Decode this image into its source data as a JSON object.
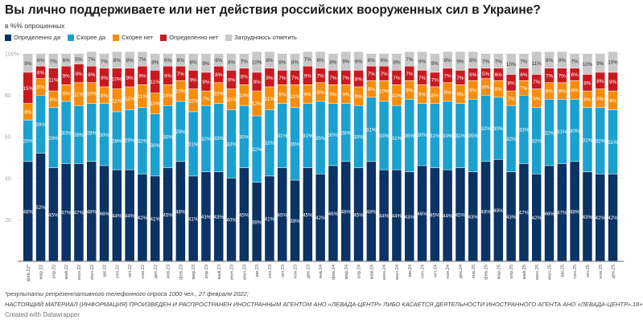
{
  "title": "Вы лично поддерживаете или нет действия российских вооруженных сил в Украине?",
  "subtitle": "в %% опрошенных",
  "footnote": "*результаты репрезентативного телефонного опроса 1000 чел., 27 февраля 2022;",
  "disclaimer": "НАСТОЯЩИЙ МАТЕРИАЛ (ИНФОРМАЦИЯ) ПРОИЗВЕДЕН И РАСПРОСТРАНЕН ИНОСТРАННЫМ АГЕНТОМ АНО «ЛЕВАДА-ЦЕНТР» ЛИБО КАСАЕТСЯ ДЕЯТЕЛЬНОСТИ ИНОСТРАННОГО АГЕНТА АНО «ЛЕВАДА-ЦЕНТР».18+",
  "credit": "Created with Datawrapper",
  "chart_data": {
    "type": "bar",
    "stacked": true,
    "ylim": [
      0,
      100
    ],
    "yticks": [
      "20",
      "40",
      "60",
      "80",
      "100%"
    ],
    "ytick_values": [
      20,
      40,
      60,
      80,
      100
    ],
    "grid": true,
    "legend_position": "top-left",
    "value_label_suffix": "%",
    "categories": [
      "фев.22*",
      "мар.22",
      "апр.22",
      "май.22",
      "июн.22",
      "июл.22",
      "авг.22",
      "сен.22",
      "окт.22",
      "ноя.22",
      "дек.22",
      "янв.23",
      "фев.23",
      "мар.23",
      "апр.23",
      "май.23",
      "июн.23",
      "июл.23",
      "авг.23",
      "сен.23",
      "окт.23",
      "ноя.23",
      "дек.23",
      "янв.24",
      "фев.24",
      "мар.24",
      "апр.24",
      "май.24",
      "июн.24",
      "июл.24",
      "авг.24",
      "сен.24",
      "окт.24",
      "ноя.24",
      "дек.24",
      "янв.25",
      "фев.25",
      "мар.25",
      "апр.25",
      "май.25",
      "июн.25",
      "июл.25",
      "авг.25",
      "сен.25",
      "окт.25",
      "ноя.25",
      "дек.25"
    ],
    "series": [
      {
        "name": "Определенно да",
        "color": "#0b3363",
        "values": [
          48,
          52,
          45,
          47,
          47,
          48,
          46,
          44,
          44,
          42,
          41,
          45,
          48,
          41,
          43,
          43,
          40,
          45,
          38,
          41,
          45,
          39,
          45,
          42,
          46,
          48,
          45,
          48,
          44,
          44,
          43,
          46,
          45,
          44,
          45,
          43,
          48,
          49,
          43,
          47,
          42,
          46,
          47,
          48,
          43,
          42,
          42
        ]
      },
      {
        "name": "Скорее да",
        "color": "#1ba1cf",
        "values": [
          20,
          28,
          29,
          30,
          28,
          28,
          30,
          28,
          29,
          32,
          30,
          30,
          29,
          31,
          32,
          33,
          33,
          30,
          32,
          32,
          31,
          35,
          31,
          35,
          30,
          28,
          30,
          31,
          33,
          31,
          35,
          30,
          31,
          33,
          31,
          35,
          32,
          30,
          32,
          33,
          32,
          32,
          31,
          30,
          31,
          32,
          31
        ]
      },
      {
        "name": "Скорее нет",
        "color": "#f78c0a",
        "values": [
          8,
          8,
          8,
          8,
          11,
          10,
          8,
          11,
          11,
          11,
          10,
          10,
          10,
          11,
          7,
          10,
          10,
          10,
          12,
          11,
          9,
          11,
          9,
          9,
          9,
          9,
          9,
          8,
          10,
          10,
          9,
          9,
          8,
          9,
          9,
          9,
          8,
          8,
          7,
          7,
          9,
          8,
          8,
          9,
          8,
          9,
          9
        ]
      },
      {
        "name": "Определенно нет",
        "color": "#c9181f",
        "values": [
          15,
          6,
          11,
          9,
          9,
          8,
          9,
          10,
          9,
          9,
          11,
          9,
          7,
          9,
          9,
          8,
          9,
          8,
          9,
          9,
          7,
          7,
          9,
          7,
          7,
          7,
          8,
          7,
          7,
          7,
          7,
          7,
          7,
          7,
          7,
          6,
          5,
          6,
          8,
          6,
          7,
          7,
          7,
          6,
          8,
          8,
          9
        ]
      },
      {
        "name": "Затрудняюсь ответить",
        "color": "#c8c8c8",
        "values": [
          9,
          6,
          7,
          6,
          5,
          7,
          7,
          8,
          8,
          7,
          8,
          6,
          6,
          8,
          9,
          6,
          8,
          7,
          10,
          8,
          8,
          8,
          7,
          8,
          8,
          9,
          9,
          6,
          6,
          8,
          7,
          9,
          9,
          8,
          9,
          8,
          7,
          7,
          10,
          7,
          11,
          8,
          8,
          7,
          10,
          9,
          10
        ]
      }
    ]
  }
}
